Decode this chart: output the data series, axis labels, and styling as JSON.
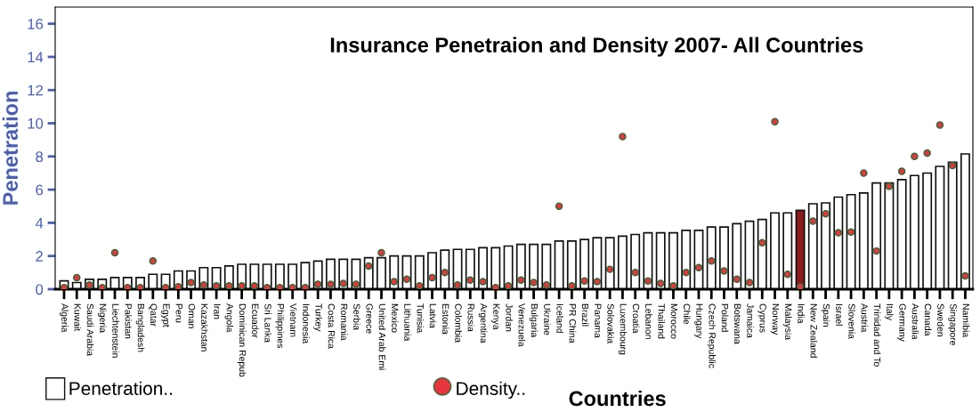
{
  "chart_data": {
    "type": "bar",
    "title": "Insurance Penetraion and Density 2007- All Countries",
    "xlabel": "Countries",
    "ylabel": "Penetration",
    "categories": [
      "Algeria",
      "Kuwait",
      "Saudi Arabia",
      "Nigeria",
      "Liechtenstein",
      "Pakistan",
      "Bangladesh",
      "Qatar",
      "Egypt",
      "Peru",
      "Oman",
      "Kazakhstan",
      "Iran",
      "Angola",
      "Dominican Repub",
      "Ecuador",
      "Sri Lanka",
      "Philippines",
      "Vietnam",
      "Indonesia",
      "Turkey",
      "Costa Rica",
      "Romania",
      "Serbia",
      "Greece",
      "United Arab Emi",
      "Mexico",
      "Lithuania",
      "Tunisia",
      "Latvia",
      "Estonia",
      "Colombia",
      "Russia",
      "Argentina",
      "Kenya",
      "Jordan",
      "Venezuela",
      "Bulgaria",
      "Ukraine",
      "Iceland",
      "PR China",
      "Brazil",
      "Panama",
      "Solovakia",
      "Luxembourg",
      "Croatia",
      "Lebanon",
      "Thailand",
      "Morocco",
      "Chile",
      "Hungary",
      "Czech Republic",
      "Poland",
      "Botswana",
      "Jamaica",
      "Cyprus",
      "Norway",
      "Malaysia",
      "India",
      "New Zealand",
      "Spain",
      "Israel",
      "Slovenia",
      "Austria",
      "Trinidad and To",
      "Italy",
      "Germany",
      "Australia",
      "Canada",
      "Sweden",
      "Singapore",
      "Namibia"
    ],
    "series": [
      {
        "name": "Penetration..",
        "color": "#ffffff",
        "colors": [
          "#ffffff",
          "#ffffff",
          "#ffffff",
          "#ffffff",
          "#ffffff",
          "#ffffff",
          "#ffffff",
          "#ffffff",
          "#ffffff",
          "#ffffff",
          "#ffffff",
          "#ffffff",
          "#ffffff",
          "#ffffff",
          "#ffffff",
          "#ffffff",
          "#ffffff",
          "#ffffff",
          "#ffffff",
          "#ffffff",
          "#ffffff",
          "#ffffff",
          "#ffffff",
          "#ffffff",
          "#ffffff",
          "#ffffff",
          "#ffffff",
          "#ffffff",
          "#ffffff",
          "#ffffff",
          "#ffffff",
          "#ffffff",
          "#ffffff",
          "#ffffff",
          "#ffffff",
          "#ffffff",
          "#ffffff",
          "#ffffff",
          "#ffffff",
          "#ffffff",
          "#ffffff",
          "#ffffff",
          "#ffffff",
          "#ffffff",
          "#ffffff",
          "#ffffff",
          "#ffffff",
          "#ffffff",
          "#ffffff",
          "#ffffff",
          "#ffffff",
          "#ffffff",
          "#ffffff",
          "#ffffff",
          "#ffffff",
          "#ffffff",
          "#ffffff",
          "#ffffff",
          "#8b1a1a",
          "#ffffff",
          "#ffffff",
          "#ffffff",
          "#ffffff",
          "#ffffff",
          "#ffffff",
          "#ffffff",
          "#ffffff",
          "#ffffff",
          "#ffffff",
          "#ffffff",
          "#ffffff",
          "#ffffff"
        ],
        "values": [
          0.5,
          0.4,
          0.6,
          0.6,
          0.7,
          0.7,
          0.7,
          0.9,
          0.9,
          1.1,
          1.1,
          1.3,
          1.3,
          1.4,
          1.5,
          1.5,
          1.5,
          1.5,
          1.5,
          1.6,
          1.7,
          1.8,
          1.8,
          1.8,
          1.9,
          1.9,
          2.0,
          2.0,
          2.0,
          2.2,
          2.35,
          2.4,
          2.4,
          2.5,
          2.5,
          2.6,
          2.7,
          2.7,
          2.7,
          2.9,
          2.9,
          3.0,
          3.1,
          3.1,
          3.2,
          3.3,
          3.4,
          3.4,
          3.4,
          3.55,
          3.55,
          3.75,
          3.75,
          3.95,
          4.1,
          4.2,
          4.6,
          4.6,
          4.75,
          5.15,
          5.2,
          5.55,
          5.7,
          5.8,
          6.4,
          6.4,
          6.6,
          6.85,
          7.0,
          7.4,
          7.65,
          8.15
        ]
      },
      {
        "name": "Density..",
        "type": "scatter",
        "color": "#e8343c",
        "values": [
          0.1,
          0.7,
          0.25,
          0.1,
          2.2,
          0.1,
          0.1,
          1.7,
          0.1,
          0.15,
          0.4,
          0.25,
          0.2,
          0.2,
          0.2,
          0.2,
          0.1,
          0.1,
          0.1,
          0.1,
          0.3,
          0.3,
          0.35,
          0.3,
          1.4,
          2.2,
          0.45,
          0.6,
          0.2,
          0.7,
          1.0,
          0.25,
          0.55,
          0.45,
          0.1,
          0.2,
          0.55,
          0.4,
          0.25,
          5.0,
          0.2,
          0.5,
          0.45,
          1.2,
          9.2,
          1.0,
          0.5,
          0.35,
          0.2,
          1.0,
          1.3,
          1.7,
          1.1,
          0.6,
          0.4,
          2.8,
          10.1,
          0.9,
          0.15,
          4.1,
          4.55,
          3.4,
          3.45,
          7.0,
          2.3,
          6.2,
          7.1,
          8.0,
          8.2,
          9.9,
          7.45,
          0.8
        ]
      }
    ],
    "ylim": [
      0,
      17
    ],
    "yticks": [
      0,
      2,
      4,
      6,
      8,
      10,
      12,
      14,
      16
    ],
    "grid": false,
    "legend": "bottom left",
    "marker": "circle"
  }
}
